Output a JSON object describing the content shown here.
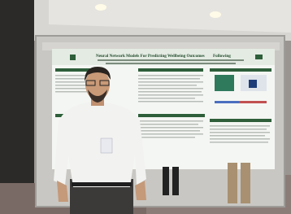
{
  "poster": {
    "title_start": "Neural Network Models For Predicting Wellbeing Outcomes",
    "title_end": "Following"
  }
}
